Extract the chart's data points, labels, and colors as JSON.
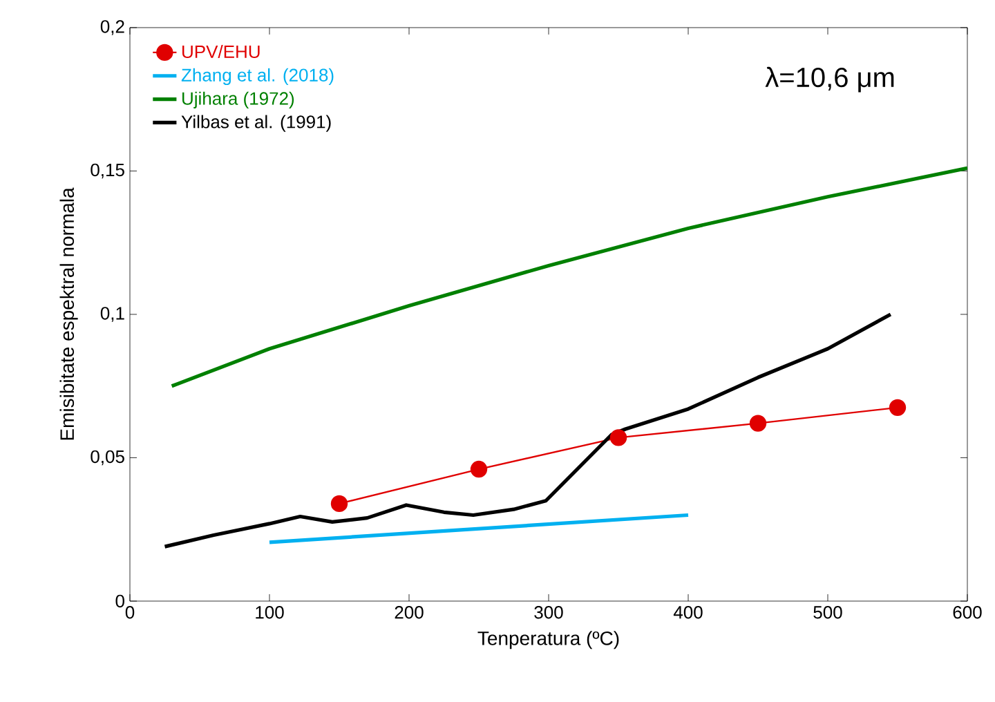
{
  "chart_data": {
    "type": "line",
    "xlabel": "Tenperatura (ºC)",
    "ylabel": "Emisibitate espektral normala",
    "annotations": [
      "λ=10,6 μm"
    ],
    "xlim": [
      0,
      600
    ],
    "xticks": [
      0,
      100,
      200,
      300,
      400,
      500,
      600
    ],
    "ylim": [
      0,
      0.2
    ],
    "yticks": [
      0,
      {
        "value": 0.05,
        "label": "0,05"
      },
      {
        "value": 0.1,
        "label": "0,1"
      },
      {
        "value": 0.15,
        "label": "0,15"
      },
      {
        "value": 0.2,
        "label": "0,2"
      }
    ],
    "grid": false,
    "legend": "top left",
    "line_style": "solid",
    "series": [
      {
        "name": "UPV/EHU",
        "color": "#e00000",
        "marker": "circle",
        "x": [
          150,
          250,
          350,
          450,
          550
        ],
        "values": [
          0.034,
          0.046,
          0.057,
          0.062,
          0.0675
        ]
      },
      {
        "name": "Zhang et al. (2018)",
        "color": "#00b0f0",
        "x": [
          100,
          400
        ],
        "values": [
          0.0205,
          0.03
        ]
      },
      {
        "name": "Ujihara (1972)",
        "color": "#008000",
        "x": [
          30,
          100,
          200,
          300,
          400,
          500,
          600
        ],
        "values": [
          0.075,
          0.088,
          0.103,
          0.117,
          0.13,
          0.141,
          0.151
        ]
      },
      {
        "name": "Yilbas et al. (1991)",
        "color": "#000000",
        "x": [
          25,
          60,
          100,
          122,
          145,
          170,
          198,
          225,
          246,
          275,
          298,
          345,
          355,
          400,
          450,
          500,
          545
        ],
        "values": [
          0.019,
          0.023,
          0.027,
          0.0295,
          0.0276,
          0.029,
          0.0335,
          0.031,
          0.03,
          0.032,
          0.035,
          0.058,
          0.06,
          0.067,
          0.078,
          0.088,
          0.1
        ]
      }
    ]
  }
}
